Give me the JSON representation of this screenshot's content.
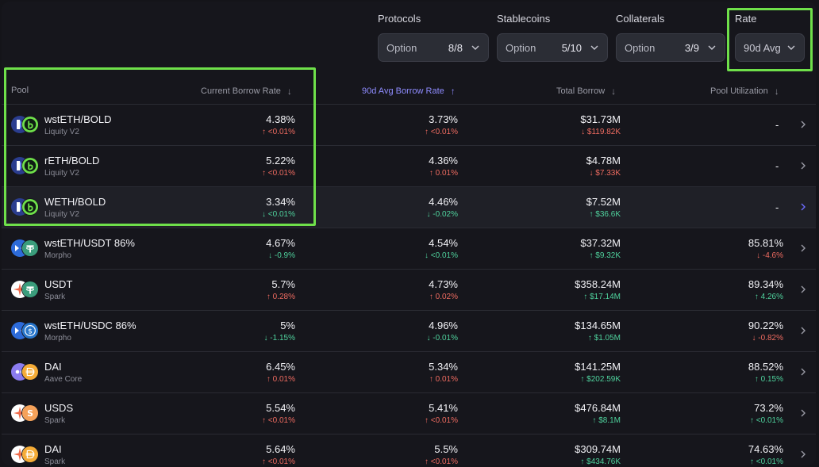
{
  "filters": [
    {
      "label": "Protocols",
      "option": "Option",
      "count": "8/8"
    },
    {
      "label": "Stablecoins",
      "option": "Option",
      "count": "5/10"
    },
    {
      "label": "Collaterals",
      "option": "Option",
      "count": "3/9"
    },
    {
      "label": "Rate",
      "option": "90d Avg"
    }
  ],
  "columns": {
    "pool": "Pool",
    "current_rate": "Current Borrow Rate",
    "avg_rate": "90d Avg Borrow Rate",
    "total_borrow": "Total Borrow",
    "utilization": "Pool Utilization",
    "arrow_down": "↓",
    "arrow_up": "↑"
  },
  "rows": [
    {
      "name": "wstETH/BOLD",
      "protocol": "Liquity V2",
      "icons": [
        "liquity-icon",
        "bold-icon"
      ],
      "cur": "4.38%",
      "cur_chg": "↑ <0.01%",
      "avg": "3.73%",
      "avg_chg": "↑ <0.01%",
      "borrow": "$31.73M",
      "borrow_chg": "↓ $119.82K",
      "util": "-",
      "util_chg": ""
    },
    {
      "name": "rETH/BOLD",
      "protocol": "Liquity V2",
      "icons": [
        "liquity-icon",
        "bold-icon"
      ],
      "cur": "5.22%",
      "cur_chg": "↑ <0.01%",
      "avg": "4.36%",
      "avg_chg": "↑ 0.01%",
      "borrow": "$4.78M",
      "borrow_chg": "↓ $7.33K",
      "util": "-",
      "util_chg": ""
    },
    {
      "name": "WETH/BOLD",
      "protocol": "Liquity V2",
      "icons": [
        "liquity-icon",
        "bold-icon"
      ],
      "cur": "3.34%",
      "cur_chg": "↓ <0.01%",
      "avg": "4.46%",
      "avg_chg": "↓ -0.02%",
      "borrow": "$7.52M",
      "borrow_chg": "↑ $36.6K",
      "util": "-",
      "util_chg": ""
    },
    {
      "name": "wstETH/USDT 86%",
      "protocol": "Morpho",
      "icons": [
        "morpho-icon",
        "usdt-icon"
      ],
      "cur": "4.67%",
      "cur_chg": "↓ -0.9%",
      "avg": "4.54%",
      "avg_chg": "↓ <0.01%",
      "borrow": "$37.32M",
      "borrow_chg": "↑ $9.32K",
      "util": "85.81%",
      "util_chg": "↓ -4.6%"
    },
    {
      "name": "USDT",
      "protocol": "Spark",
      "icons": [
        "spark-icon",
        "usdt-icon"
      ],
      "cur": "5.7%",
      "cur_chg": "↑ 0.28%",
      "avg": "4.73%",
      "avg_chg": "↑ 0.02%",
      "borrow": "$358.24M",
      "borrow_chg": "↑ $17.14M",
      "util": "89.34%",
      "util_chg": "↑ 4.26%"
    },
    {
      "name": "wstETH/USDC 86%",
      "protocol": "Morpho",
      "icons": [
        "morpho-icon",
        "usdc-icon"
      ],
      "cur": "5%",
      "cur_chg": "↓ -1.15%",
      "avg": "4.96%",
      "avg_chg": "↓ -0.01%",
      "borrow": "$134.65M",
      "borrow_chg": "↑ $1.05M",
      "util": "90.22%",
      "util_chg": "↓ -0.82%"
    },
    {
      "name": "DAI",
      "protocol": "Aave Core",
      "icons": [
        "aave-icon",
        "dai-icon"
      ],
      "cur": "6.45%",
      "cur_chg": "↑ 0.01%",
      "avg": "5.34%",
      "avg_chg": "↑ 0.01%",
      "borrow": "$141.25M",
      "borrow_chg": "↑ $202.59K",
      "util": "88.52%",
      "util_chg": "↑ 0.15%"
    },
    {
      "name": "USDS",
      "protocol": "Spark",
      "icons": [
        "spark-icon",
        "usds-icon"
      ],
      "cur": "5.54%",
      "cur_chg": "↑ <0.01%",
      "avg": "5.41%",
      "avg_chg": "↑ <0.01%",
      "borrow": "$476.84M",
      "borrow_chg": "↑ $8.1M",
      "util": "73.2%",
      "util_chg": "↑ <0.01%"
    },
    {
      "name": "DAI",
      "protocol": "Spark",
      "icons": [
        "spark-icon",
        "dai-icon"
      ],
      "cur": "5.64%",
      "cur_chg": "↑ <0.01%",
      "avg": "5.5%",
      "avg_chg": "↑ <0.01%",
      "borrow": "$309.74M",
      "borrow_chg": "↑ $434.76K",
      "util": "74.63%",
      "util_chg": "↑ <0.01%"
    }
  ],
  "colors": {
    "highlight": "#6fe04a",
    "increase": "#ee6b60",
    "decrease_good": "#4fd29d",
    "active_sort": "#8f8cff"
  }
}
